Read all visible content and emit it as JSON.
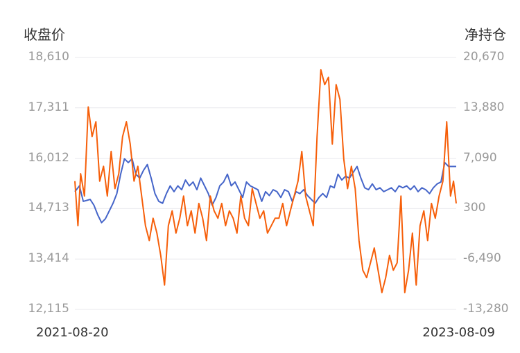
{
  "chart_data": {
    "type": "line",
    "title": "",
    "left_axis": {
      "label": "收盘价",
      "ticks": [
        "18,610",
        "17,311",
        "16,012",
        "14,713",
        "13,414",
        "12,115"
      ],
      "ylim": [
        12115,
        18610
      ]
    },
    "right_axis": {
      "label": "净持仓",
      "ticks": [
        "20,670",
        "13,880",
        "7,090",
        "300",
        "-6,490",
        "-13,280"
      ],
      "ylim": [
        -13280,
        20670
      ]
    },
    "x_range": [
      "2021-08-20",
      "2023-08-09"
    ],
    "grid": true,
    "colors": {
      "close": "#4565c9",
      "net_position": "#f65f0a",
      "grid": "#e8e8ee"
    },
    "series": [
      {
        "axis": "left",
        "points": [
          [
            0,
            15150
          ],
          [
            0.012,
            15300
          ],
          [
            0.022,
            14900
          ],
          [
            0.04,
            14950
          ],
          [
            0.05,
            14800
          ],
          [
            0.06,
            14550
          ],
          [
            0.07,
            14350
          ],
          [
            0.08,
            14450
          ],
          [
            0.09,
            14650
          ],
          [
            0.1,
            14850
          ],
          [
            0.11,
            15100
          ],
          [
            0.12,
            15600
          ],
          [
            0.13,
            16000
          ],
          [
            0.14,
            15900
          ],
          [
            0.15,
            16000
          ],
          [
            0.16,
            15600
          ],
          [
            0.17,
            15500
          ],
          [
            0.18,
            15700
          ],
          [
            0.19,
            15850
          ],
          [
            0.2,
            15500
          ],
          [
            0.21,
            15100
          ],
          [
            0.22,
            14900
          ],
          [
            0.23,
            14850
          ],
          [
            0.24,
            15100
          ],
          [
            0.25,
            15300
          ],
          [
            0.26,
            15150
          ],
          [
            0.27,
            15300
          ],
          [
            0.28,
            15200
          ],
          [
            0.29,
            15450
          ],
          [
            0.3,
            15300
          ],
          [
            0.31,
            15400
          ],
          [
            0.32,
            15200
          ],
          [
            0.33,
            15500
          ],
          [
            0.34,
            15300
          ],
          [
            0.35,
            15100
          ],
          [
            0.36,
            14800
          ],
          [
            0.37,
            15000
          ],
          [
            0.38,
            15300
          ],
          [
            0.39,
            15400
          ],
          [
            0.4,
            15600
          ],
          [
            0.41,
            15300
          ],
          [
            0.42,
            15400
          ],
          [
            0.43,
            15200
          ],
          [
            0.44,
            15000
          ],
          [
            0.45,
            15400
          ],
          [
            0.46,
            15300
          ],
          [
            0.47,
            15250
          ],
          [
            0.48,
            15200
          ],
          [
            0.49,
            14900
          ],
          [
            0.5,
            15150
          ],
          [
            0.51,
            15050
          ],
          [
            0.52,
            15200
          ],
          [
            0.53,
            15150
          ],
          [
            0.54,
            15000
          ],
          [
            0.55,
            15200
          ],
          [
            0.56,
            15150
          ],
          [
            0.57,
            14900
          ],
          [
            0.58,
            15150
          ],
          [
            0.59,
            15100
          ],
          [
            0.6,
            15200
          ],
          [
            0.61,
            15050
          ],
          [
            0.62,
            14950
          ],
          [
            0.63,
            14850
          ],
          [
            0.64,
            15000
          ],
          [
            0.65,
            15100
          ],
          [
            0.66,
            15000
          ],
          [
            0.67,
            15300
          ],
          [
            0.68,
            15250
          ],
          [
            0.69,
            15600
          ],
          [
            0.7,
            15450
          ],
          [
            0.71,
            15550
          ],
          [
            0.72,
            15500
          ],
          [
            0.73,
            15650
          ],
          [
            0.74,
            15800
          ],
          [
            0.75,
            15500
          ],
          [
            0.76,
            15250
          ],
          [
            0.77,
            15200
          ],
          [
            0.78,
            15350
          ],
          [
            0.79,
            15200
          ],
          [
            0.8,
            15250
          ],
          [
            0.81,
            15150
          ],
          [
            0.82,
            15200
          ],
          [
            0.83,
            15250
          ],
          [
            0.84,
            15150
          ],
          [
            0.85,
            15300
          ],
          [
            0.86,
            15250
          ],
          [
            0.87,
            15300
          ],
          [
            0.88,
            15200
          ],
          [
            0.89,
            15300
          ],
          [
            0.9,
            15150
          ],
          [
            0.91,
            15250
          ],
          [
            0.92,
            15200
          ],
          [
            0.93,
            15100
          ],
          [
            0.94,
            15250
          ],
          [
            0.95,
            15350
          ],
          [
            0.96,
            15400
          ],
          [
            0.97,
            15900
          ],
          [
            0.98,
            15800
          ],
          [
            0.99,
            15800
          ],
          [
            1,
            15800
          ]
        ]
      },
      {
        "axis": "right",
        "points": [
          [
            0,
            4000
          ],
          [
            0.008,
            -2000
          ],
          [
            0.015,
            5000
          ],
          [
            0.025,
            2000
          ],
          [
            0.035,
            14000
          ],
          [
            0.045,
            10000
          ],
          [
            0.055,
            12000
          ],
          [
            0.065,
            4000
          ],
          [
            0.075,
            6000
          ],
          [
            0.085,
            2000
          ],
          [
            0.095,
            8000
          ],
          [
            0.105,
            3000
          ],
          [
            0.115,
            5000
          ],
          [
            0.125,
            10000
          ],
          [
            0.135,
            12000
          ],
          [
            0.145,
            9000
          ],
          [
            0.155,
            4000
          ],
          [
            0.165,
            6000
          ],
          [
            0.175,
            2000
          ],
          [
            0.185,
            -2000
          ],
          [
            0.195,
            -4000
          ],
          [
            0.205,
            -1000
          ],
          [
            0.215,
            -3000
          ],
          [
            0.225,
            -6000
          ],
          [
            0.235,
            -10000
          ],
          [
            0.245,
            -2000
          ],
          [
            0.255,
            0
          ],
          [
            0.265,
            -3000
          ],
          [
            0.275,
            -1000
          ],
          [
            0.285,
            2000
          ],
          [
            0.295,
            -2000
          ],
          [
            0.305,
            0
          ],
          [
            0.315,
            -3000
          ],
          [
            0.325,
            1000
          ],
          [
            0.335,
            -1000
          ],
          [
            0.345,
            -4000
          ],
          [
            0.355,
            2000
          ],
          [
            0.365,
            0
          ],
          [
            0.375,
            -1000
          ],
          [
            0.385,
            1000
          ],
          [
            0.395,
            -2000
          ],
          [
            0.405,
            0
          ],
          [
            0.415,
            -1000
          ],
          [
            0.425,
            -3000
          ],
          [
            0.435,
            2000
          ],
          [
            0.445,
            -1000
          ],
          [
            0.455,
            -2000
          ],
          [
            0.465,
            3000
          ],
          [
            0.475,
            1000
          ],
          [
            0.485,
            -1000
          ],
          [
            0.495,
            0
          ],
          [
            0.505,
            -3000
          ],
          [
            0.515,
            -2000
          ],
          [
            0.525,
            -1000
          ],
          [
            0.535,
            -1000
          ],
          [
            0.545,
            1000
          ],
          [
            0.555,
            -2000
          ],
          [
            0.565,
            0
          ],
          [
            0.575,
            2000
          ],
          [
            0.585,
            4000
          ],
          [
            0.595,
            8000
          ],
          [
            0.605,
            2000
          ],
          [
            0.615,
            0
          ],
          [
            0.625,
            -2000
          ],
          [
            0.635,
            10000
          ],
          [
            0.645,
            19000
          ],
          [
            0.655,
            17000
          ],
          [
            0.665,
            18000
          ],
          [
            0.675,
            9000
          ],
          [
            0.685,
            17000
          ],
          [
            0.695,
            15000
          ],
          [
            0.705,
            7000
          ],
          [
            0.715,
            3000
          ],
          [
            0.725,
            6000
          ],
          [
            0.735,
            3000
          ],
          [
            0.745,
            -4000
          ],
          [
            0.755,
            -8000
          ],
          [
            0.765,
            -9000
          ],
          [
            0.775,
            -7000
          ],
          [
            0.785,
            -5000
          ],
          [
            0.795,
            -8000
          ],
          [
            0.805,
            -11000
          ],
          [
            0.815,
            -9000
          ],
          [
            0.825,
            -6000
          ],
          [
            0.835,
            -8000
          ],
          [
            0.845,
            -7000
          ],
          [
            0.855,
            2000
          ],
          [
            0.865,
            -11000
          ],
          [
            0.875,
            -8000
          ],
          [
            0.885,
            -3000
          ],
          [
            0.895,
            -10000
          ],
          [
            0.905,
            -2000
          ],
          [
            0.915,
            0
          ],
          [
            0.925,
            -4000
          ],
          [
            0.935,
            1000
          ],
          [
            0.945,
            -1000
          ],
          [
            0.955,
            2000
          ],
          [
            0.965,
            4000
          ],
          [
            0.975,
            12000
          ],
          [
            0.985,
            2000
          ],
          [
            0.993,
            4000
          ],
          [
            1,
            1000
          ]
        ]
      }
    ]
  }
}
